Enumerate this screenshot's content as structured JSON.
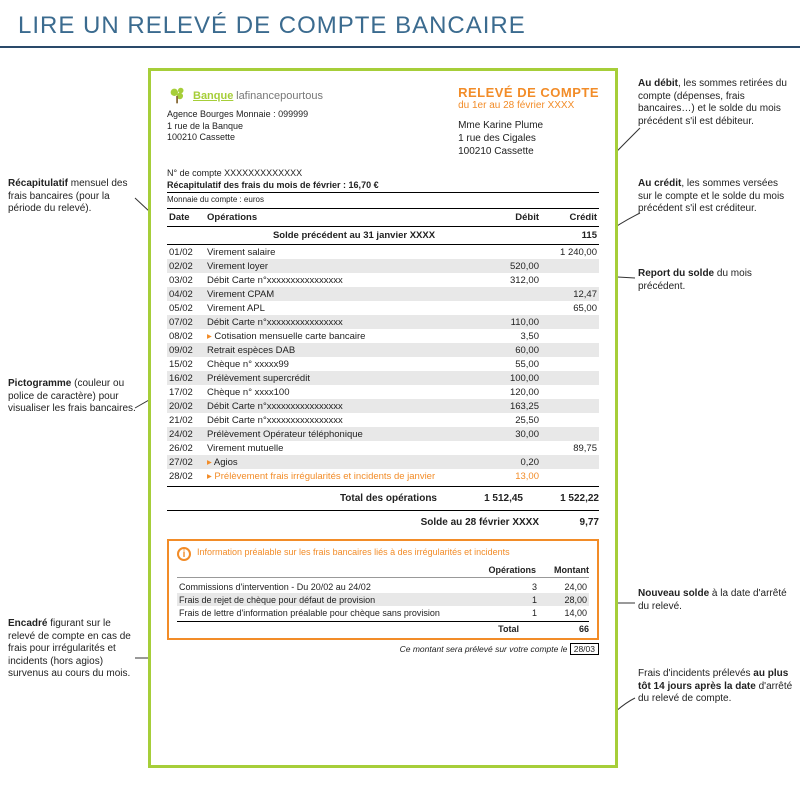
{
  "title": "LIRE UN RELEVÉ DE COMPTE BANCAIRE",
  "colors": {
    "accent_green": "#a6ce39",
    "accent_orange": "#f28c28",
    "title_blue": "#3b6b8f",
    "rule": "#2a4a6a",
    "stripe": "#e8e8e8"
  },
  "bank": {
    "brand1": "Banque",
    "brand2": "lafinancepourtous",
    "agency": "Agence Bourges Monnaie : 099999",
    "addr1": "1 rue de la Banque",
    "addr2": "100210 Cassette"
  },
  "statement": {
    "title": "RELEVÉ DE COMPTE",
    "period": "du 1er au 28 février XXXX",
    "customer": {
      "name": "Mme Karine Plume",
      "addr1": "1 rue des Cigales",
      "addr2": "100210 Cassette"
    },
    "account": "N° de compte XXXXXXXXXXXXX",
    "recap": "Récapitulatif des frais du mois de février : 16,70 €",
    "currency": "Monnaie du compte : euros",
    "columns": {
      "date": "Date",
      "op": "Opérations",
      "debit": "Débit",
      "credit": "Crédit"
    },
    "prev_balance": {
      "label": "Solde précédent au 31 janvier XXXX",
      "value": "115"
    },
    "rows": [
      {
        "d": "01/02",
        "op": "Virement salaire",
        "deb": "",
        "cr": "1 240,00"
      },
      {
        "d": "02/02",
        "op": "Virement loyer",
        "deb": "520,00",
        "cr": ""
      },
      {
        "d": "03/02",
        "op": "Débit Carte n°xxxxxxxxxxxxxxxx",
        "deb": "312,00",
        "cr": ""
      },
      {
        "d": "04/02",
        "op": "Virement CPAM",
        "deb": "",
        "cr": "12,47"
      },
      {
        "d": "05/02",
        "op": "Virement APL",
        "deb": "",
        "cr": "65,00"
      },
      {
        "d": "07/02",
        "op": "Débit Carte n°xxxxxxxxxxxxxxxx",
        "deb": "110,00",
        "cr": ""
      },
      {
        "d": "08/02",
        "op": "Cotisation mensuelle carte bancaire",
        "deb": "3,50",
        "cr": "",
        "m": true
      },
      {
        "d": "09/02",
        "op": "Retrait espèces DAB",
        "deb": "60,00",
        "cr": ""
      },
      {
        "d": "15/02",
        "op": "Chèque n° xxxxx99",
        "deb": "55,00",
        "cr": ""
      },
      {
        "d": "16/02",
        "op": "Prélèvement supercrédit",
        "deb": "100,00",
        "cr": ""
      },
      {
        "d": "17/02",
        "op": "Chèque n° xxxx100",
        "deb": "120,00",
        "cr": ""
      },
      {
        "d": "20/02",
        "op": "Débit Carte n°xxxxxxxxxxxxxxxx",
        "deb": "163,25",
        "cr": ""
      },
      {
        "d": "21/02",
        "op": "Débit Carte n°xxxxxxxxxxxxxxxx",
        "deb": "25,50",
        "cr": ""
      },
      {
        "d": "24/02",
        "op": "Prélèvement Opérateur téléphonique",
        "deb": "30,00",
        "cr": ""
      },
      {
        "d": "26/02",
        "op": "Virement mutuelle",
        "deb": "",
        "cr": "89,75"
      },
      {
        "d": "27/02",
        "op": "Agios",
        "deb": "0,20",
        "cr": "",
        "m": true
      },
      {
        "d": "28/02",
        "op": "Prélèvement frais irrégularités et incidents de janvier",
        "deb": "13,00",
        "cr": "",
        "m": true,
        "orange": true
      }
    ],
    "total": {
      "label": "Total des opérations",
      "debit": "1 512,45",
      "credit": "1 522,22"
    },
    "closing": {
      "label": "Solde au 28 février XXXX",
      "value": "9,77"
    }
  },
  "infobox": {
    "title": "Information préalable sur les frais bancaires liés à des irrégularités et incidents",
    "col1": "Opérations",
    "col2": "Montant",
    "rows": [
      {
        "l": "Commissions d'intervention - Du 20/02 au 24/02",
        "n": "3",
        "m": "24,00"
      },
      {
        "l": "Frais de rejet de chèque pour défaut de provision",
        "n": "1",
        "m": "28,00"
      },
      {
        "l": "Frais de lettre d'information préalable pour chèque sans provision",
        "n": "1",
        "m": "14,00"
      }
    ],
    "total_label": "Total",
    "total": "66",
    "footnote_pre": "Ce montant sera prélevé sur votre compte le",
    "footnote_date": "28/03"
  },
  "annot": {
    "a1": "Récapitulatif",
    "a1t": " mensuel des frais bancaires (pour la période du relevé).",
    "a2": "Pictogramme",
    "a2t": " (couleur ou police de caractère) pour visualiser les frais bancaires.",
    "a3": "Encadré",
    "a3t": " figurant sur le relevé de compte en cas de frais pour irrégularités et incidents (hors agios) survenus au cours du mois.",
    "b1": "Au débit",
    "b1t": ", les sommes retirées du compte (dépenses, frais bancaires…) et le solde du mois précédent s'il est débiteur.",
    "b2": "Au crédit",
    "b2t": ", les sommes versées sur le compte et le solde du mois précédent s'il est créditeur.",
    "b3": "Report du solde",
    "b3t": " du mois précédent.",
    "b4": "Nouveau solde",
    "b4t": " à la date d'arrêté du relevé.",
    "b5t1": "Frais d'incidents prélevés ",
    "b5": "au plus tôt 14 jours après la date",
    "b5t2": " d'arrêté du relevé de compte."
  }
}
